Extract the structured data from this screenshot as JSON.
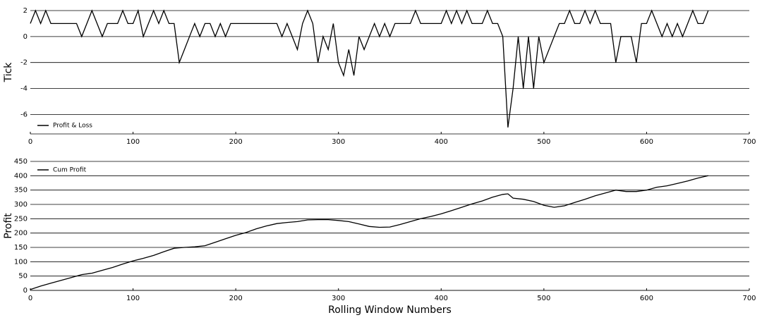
{
  "chart_data": [
    {
      "type": "line",
      "ylabel": "Tick",
      "x": [
        0,
        5,
        10,
        15,
        20,
        25,
        30,
        35,
        40,
        45,
        50,
        55,
        60,
        65,
        70,
        75,
        80,
        85,
        90,
        95,
        100,
        105,
        110,
        115,
        120,
        125,
        130,
        135,
        140,
        145,
        150,
        155,
        160,
        165,
        170,
        175,
        180,
        185,
        190,
        195,
        200,
        205,
        210,
        215,
        220,
        225,
        230,
        235,
        240,
        245,
        250,
        255,
        260,
        265,
        270,
        275,
        280,
        285,
        290,
        295,
        300,
        305,
        310,
        315,
        320,
        325,
        330,
        335,
        340,
        345,
        350,
        355,
        360,
        365,
        370,
        375,
        380,
        385,
        390,
        395,
        400,
        405,
        410,
        415,
        420,
        425,
        430,
        435,
        440,
        445,
        450,
        455,
        460,
        465,
        470,
        475,
        480,
        485,
        490,
        495,
        500,
        505,
        510,
        515,
        520,
        525,
        530,
        535,
        540,
        545,
        550,
        555,
        560,
        565,
        570,
        575,
        580,
        585,
        590,
        595,
        600,
        605,
        610,
        615,
        620,
        625,
        630,
        635,
        640,
        645,
        650,
        655,
        660
      ],
      "series": [
        {
          "name": "Profit & Loss",
          "color": "#000000",
          "values": [
            1,
            2,
            1,
            2,
            1,
            1,
            1,
            1,
            1,
            1,
            0,
            1,
            2,
            1,
            0,
            1,
            1,
            1,
            2,
            1,
            1,
            2,
            0,
            1,
            2,
            1,
            2,
            1,
            1,
            -2,
            -1,
            0,
            1,
            0,
            1,
            1,
            0,
            1,
            0,
            1,
            1,
            1,
            1,
            1,
            1,
            1,
            1,
            1,
            1,
            0,
            1,
            0,
            -1,
            1,
            2,
            1,
            -2,
            0,
            -1,
            1,
            -2,
            -3,
            -1,
            -3,
            0,
            -1,
            0,
            1,
            0,
            1,
            0,
            1,
            1,
            1,
            1,
            2,
            1,
            1,
            1,
            1,
            1,
            2,
            1,
            2,
            1,
            2,
            1,
            1,
            1,
            2,
            1,
            1,
            0,
            -7,
            -4,
            0,
            -4,
            0,
            -4,
            0,
            -2,
            -1,
            0,
            1,
            1,
            2,
            1,
            1,
            2,
            1,
            2,
            1,
            1,
            1,
            -2,
            0,
            0,
            0,
            -2,
            1,
            1,
            2,
            1,
            0,
            1,
            0,
            1,
            0,
            1,
            2,
            1,
            1,
            2
          ]
        }
      ],
      "xlim": [
        0,
        700
      ],
      "xticks": [
        0,
        100,
        200,
        300,
        400,
        500,
        600,
        700
      ],
      "ylim": [
        -7.5,
        2
      ],
      "yticks": [
        -6,
        -4,
        -2,
        0,
        2
      ],
      "grid": true,
      "legend": "lower-left"
    },
    {
      "type": "line",
      "ylabel": "Profit",
      "xlabel": "Rolling Window Numbers",
      "x": [
        0,
        10,
        20,
        30,
        40,
        50,
        60,
        70,
        80,
        90,
        100,
        110,
        120,
        130,
        140,
        150,
        160,
        170,
        180,
        190,
        200,
        210,
        220,
        230,
        240,
        250,
        260,
        270,
        280,
        290,
        300,
        310,
        320,
        330,
        340,
        350,
        360,
        370,
        380,
        390,
        400,
        410,
        420,
        430,
        440,
        450,
        460,
        465,
        470,
        480,
        490,
        500,
        510,
        520,
        530,
        540,
        550,
        560,
        570,
        580,
        590,
        600,
        610,
        620,
        630,
        640,
        650,
        660
      ],
      "series": [
        {
          "name": "Cum Profit",
          "color": "#000000",
          "values": [
            3,
            15,
            25,
            35,
            45,
            55,
            60,
            70,
            80,
            92,
            103,
            112,
            122,
            135,
            147,
            150,
            152,
            156,
            168,
            180,
            192,
            202,
            215,
            225,
            233,
            237,
            240,
            246,
            247,
            247,
            244,
            240,
            232,
            223,
            220,
            221,
            230,
            240,
            250,
            258,
            267,
            278,
            290,
            302,
            312,
            325,
            335,
            337,
            322,
            318,
            310,
            297,
            290,
            295,
            307,
            318,
            330,
            340,
            350,
            345,
            345,
            350,
            360,
            365,
            373,
            382,
            392,
            400
          ]
        }
      ],
      "xlim": [
        0,
        700
      ],
      "xticks": [
        0,
        100,
        200,
        300,
        400,
        500,
        600,
        700
      ],
      "ylim": [
        0,
        450
      ],
      "yticks": [
        0,
        50,
        100,
        150,
        200,
        250,
        300,
        350,
        400,
        450
      ],
      "grid": true,
      "legend": "upper-left"
    }
  ]
}
